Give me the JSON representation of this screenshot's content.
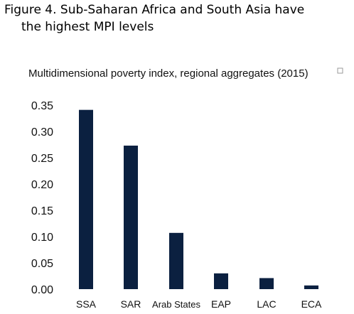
{
  "figure": {
    "title_line1": "Figure 4. Sub-Saharan Africa and South Asia have",
    "title_line2": "the highest MPI levels"
  },
  "chart_data": {
    "type": "bar",
    "title": "Multidimensional poverty index, regional aggregates (2015)",
    "categories": [
      "SSA",
      "SAR",
      "Arab States",
      "EAP",
      "LAC",
      "ECA"
    ],
    "values": [
      0.341,
      0.273,
      0.107,
      0.03,
      0.021,
      0.007
    ],
    "ylim": [
      0,
      0.35
    ],
    "yticks": [
      "0.00",
      "0.05",
      "0.10",
      "0.15",
      "0.20",
      "0.25",
      "0.30",
      "0.35"
    ],
    "grid": false,
    "legend": "none",
    "bar_color": "#0b2040"
  }
}
